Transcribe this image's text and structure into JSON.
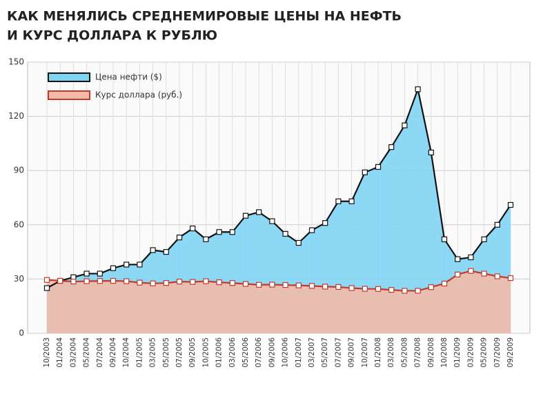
{
  "chart_data": {
    "type": "area",
    "title": [
      "КАК МЕНЯЛИСЬ СРЕДНЕМИРОВЫЕ ЦЕНЫ НА НЕФТЬ",
      "И КУРС ДОЛЛАРА К РУБЛЮ"
    ],
    "categories": [
      "10/2003",
      "01/2004",
      "03/2004",
      "05/2004",
      "07/2004",
      "09/2004",
      "10/2004",
      "01/2005",
      "03/2005",
      "05/2005",
      "07/2005",
      "09/2005",
      "10/2005",
      "01/2006",
      "03/2006",
      "05/2006",
      "07/2006",
      "09/2006",
      "10/2006",
      "01/2007",
      "03/2007",
      "05/2007",
      "07/2007",
      "09/2007",
      "10/2007",
      "01/2008",
      "03/2008",
      "05/2008",
      "07/2008",
      "09/2008",
      "10/2008",
      "01/2009",
      "03/2009",
      "05/2009",
      "07/2009",
      "09/2009"
    ],
    "series": [
      {
        "name": "Цена нефти ($)",
        "color": "#7fd4f4",
        "line_color": "#111111",
        "values": [
          25,
          29,
          31,
          33,
          33,
          36,
          38,
          38,
          46,
          45,
          53,
          58,
          52,
          56,
          56,
          65,
          67,
          62,
          55,
          50,
          57,
          61,
          73,
          73,
          89,
          92,
          103,
          115,
          135,
          100,
          52,
          41,
          42,
          52,
          60,
          71
        ]
      },
      {
        "name": "Курс доллара (руб.)",
        "color": "#f2bba9",
        "line_color": "#c0392b",
        "values": [
          29.5,
          29,
          28.6,
          28.8,
          28.9,
          29,
          28.8,
          28,
          27.6,
          27.8,
          28.6,
          28.4,
          28.8,
          28.2,
          27.8,
          27.3,
          26.8,
          26.9,
          26.7,
          26.5,
          26.2,
          25.8,
          25.6,
          25,
          24.6,
          24.5,
          24,
          23.5,
          23.5,
          25.5,
          27.5,
          32.5,
          34.5,
          33,
          31.5,
          30.5
        ]
      }
    ],
    "ylim": [
      0,
      150
    ],
    "yticks": [
      0,
      30,
      60,
      90,
      120,
      150
    ],
    "grid": true,
    "legend": "top-left"
  }
}
